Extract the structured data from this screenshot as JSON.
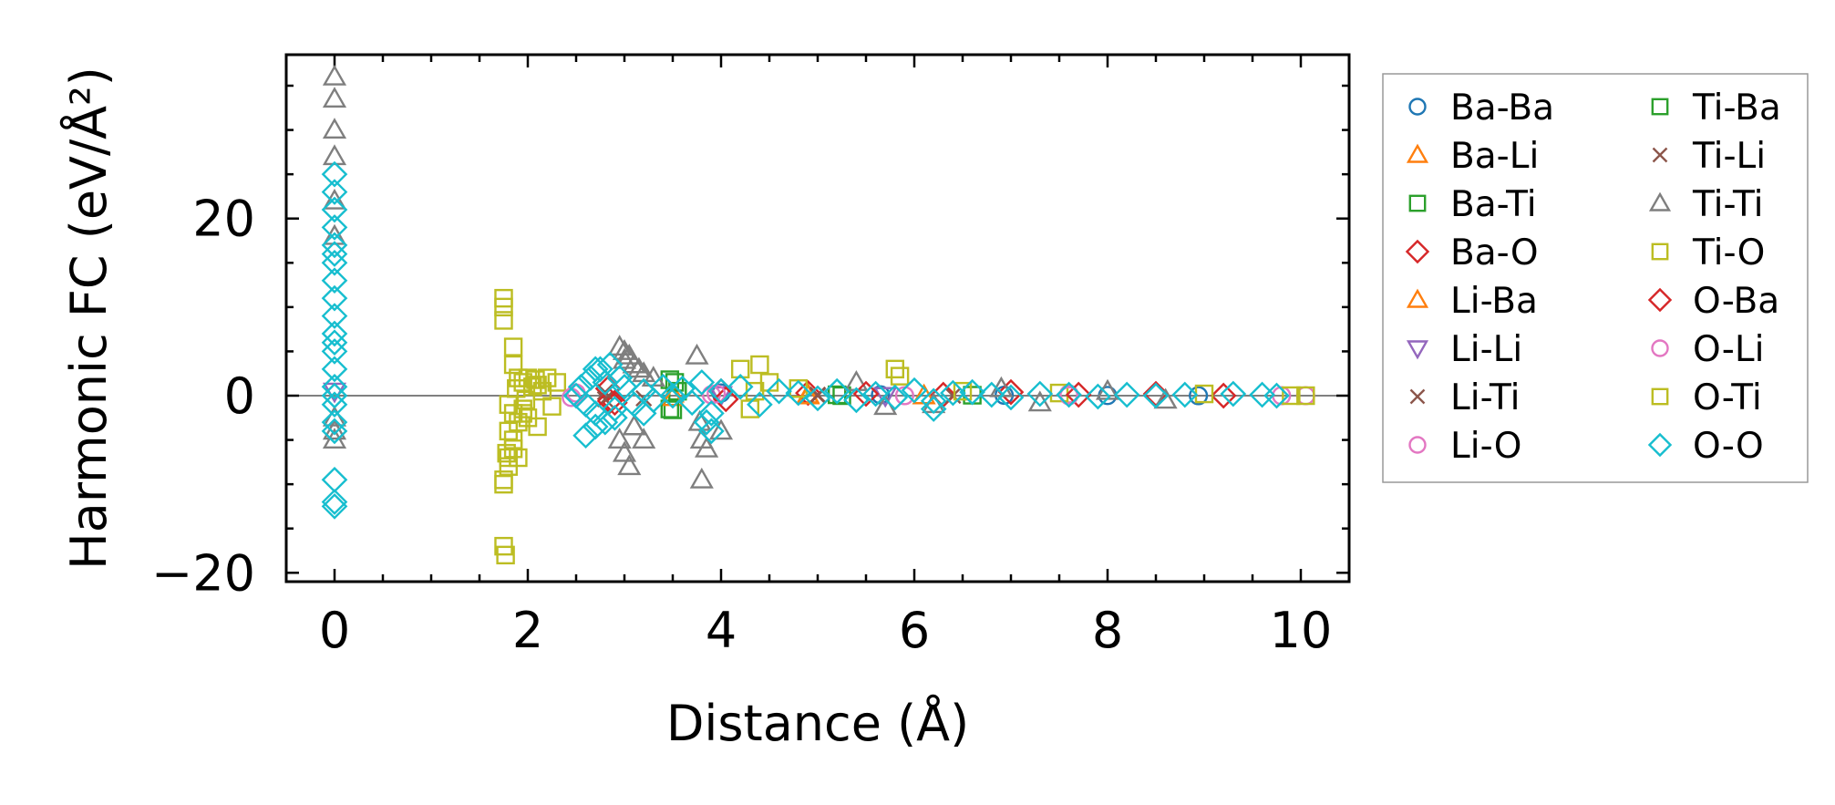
{
  "chart_data": {
    "type": "scatter",
    "title": "",
    "xlabel": "Distance (Å)",
    "ylabel": "Harmonic FC (eV/Å²)",
    "xlim": [
      -0.5,
      10.5
    ],
    "ylim": [
      -21,
      38.5
    ],
    "xticks": [
      0,
      2,
      4,
      6,
      8,
      10
    ],
    "yticks": [
      -20,
      0,
      20
    ],
    "xtick_labels": [
      "0",
      "2",
      "4",
      "6",
      "8",
      "10"
    ],
    "ytick_labels": [
      "−20",
      "0",
      "20"
    ],
    "zero_line": true,
    "legend_position": "outside-right",
    "series": [
      {
        "name": "Ba-Ba",
        "marker": "circle",
        "color": "#1f77b4",
        "x": [
          4.0,
          5.65,
          6.93,
          8.0,
          8.94
        ],
        "y": [
          0.3,
          0.1,
          0.05,
          0.02,
          0.0
        ]
      },
      {
        "name": "Ba-Li",
        "marker": "triangle-up",
        "color": "#ff7f0e",
        "x": [
          3.5,
          4.9,
          6.1
        ],
        "y": [
          0.2,
          0.1,
          0.0
        ]
      },
      {
        "name": "Ba-Ti",
        "marker": "square",
        "color": "#2ca02c",
        "x": [
          3.47,
          3.5,
          3.55,
          5.2,
          6.6
        ],
        "y": [
          1.8,
          -1.6,
          0.5,
          0.1,
          0.05
        ]
      },
      {
        "name": "Ba-O",
        "marker": "diamond",
        "color": "#d62728",
        "x": [
          2.83,
          2.9,
          4.0,
          4.9,
          6.3,
          7.0,
          8.5,
          9.2
        ],
        "y": [
          0.8,
          -0.8,
          0.5,
          0.3,
          0.1,
          0.4,
          0.2,
          0.0
        ]
      },
      {
        "name": "Li-Ba",
        "marker": "triangle-up",
        "color": "#ff7f0e",
        "x": [
          3.5,
          4.9
        ],
        "y": [
          -0.2,
          0.0
        ]
      },
      {
        "name": "Li-Li",
        "marker": "triangle-down",
        "color": "#9467bd",
        "x": [
          0,
          4.0,
          5.7
        ],
        "y": [
          0.5,
          0.1,
          0.0
        ]
      },
      {
        "name": "Li-Ti",
        "marker": "x",
        "color": "#8c564b",
        "x": [
          2.8,
          3.2,
          5.0,
          6.4
        ],
        "y": [
          0.4,
          -0.3,
          0.1,
          0.0
        ]
      },
      {
        "name": "Li-O",
        "marker": "circle",
        "color": "#e377c2",
        "x": [
          2.5,
          3.9,
          5.9,
          7.6,
          9.8,
          10.05
        ],
        "y": [
          0.3,
          0.1,
          0.0,
          0.2,
          0.0,
          0.0
        ]
      },
      {
        "name": "Ti-Ba",
        "marker": "square",
        "color": "#2ca02c",
        "x": [
          3.47,
          3.52,
          5.25
        ],
        "y": [
          -1.5,
          1.5,
          0.0
        ]
      },
      {
        "name": "Ti-Li",
        "marker": "x",
        "color": "#8c564b",
        "x": [
          2.8,
          5.0
        ],
        "y": [
          -0.4,
          0.0
        ]
      },
      {
        "name": "Ti-Ti",
        "marker": "triangle-up",
        "color": "#7f7f7f",
        "x": [
          0,
          0,
          0,
          0,
          0,
          0,
          0,
          0,
          0,
          2.95,
          3.0,
          3.0,
          3.05,
          3.1,
          3.15,
          3.2,
          3.3,
          2.95,
          3.0,
          3.05,
          3.1,
          3.2,
          3.75,
          3.8,
          3.85,
          4.0,
          3.8,
          3.78,
          5.4,
          5.7,
          6.2,
          6.9,
          7.3,
          8.0,
          8.6
        ],
        "y": [
          36,
          33.5,
          30,
          27,
          22,
          18,
          -2.5,
          -4,
          -5,
          5.5,
          5,
          4,
          4.5,
          3.5,
          3,
          2.5,
          2,
          -5,
          -6.5,
          -8,
          -3.5,
          -5,
          4.5,
          -5,
          -6,
          -4,
          -9.5,
          -3,
          1.5,
          -1.2,
          -1,
          0.8,
          -0.8,
          0.5,
          -0.5
        ]
      },
      {
        "name": "Ti-O",
        "marker": "square",
        "color": "#bcbd22",
        "x": [
          1.75,
          1.75,
          1.75,
          1.75,
          1.77,
          1.85,
          1.85,
          1.9,
          1.95,
          2.0,
          2.05,
          2.1,
          2.15,
          2.2,
          2.3,
          1.8,
          1.85,
          1.9,
          1.95,
          2.0,
          2.1,
          1.8,
          1.85,
          1.9,
          1.8,
          1.75,
          1.75,
          1.8,
          1.85,
          1.95,
          4.2,
          4.4,
          4.3,
          4.5,
          4.8,
          5.8,
          5.85,
          6.5,
          7.5,
          9.0,
          9.9,
          10.05
        ],
        "y": [
          11,
          10,
          8.5,
          -17,
          -18,
          5.5,
          3.5,
          2,
          1.5,
          2,
          1,
          1.2,
          0.5,
          2,
          1.5,
          -1,
          -2,
          -3,
          -1.5,
          -2.5,
          -3.5,
          -4,
          -6,
          -7,
          -8,
          -10,
          -9.5,
          -7,
          -5,
          -2,
          3,
          3.5,
          -1.5,
          1.5,
          0.8,
          3,
          2.2,
          0.5,
          0.3,
          0.2,
          0.0,
          0.0
        ]
      },
      {
        "name": "O-Ba",
        "marker": "diamond",
        "color": "#d62728",
        "x": [
          2.85,
          4.05,
          5.5,
          7.7
        ],
        "y": [
          -0.6,
          -0.4,
          0.2,
          0.1
        ]
      },
      {
        "name": "O-Li",
        "marker": "circle",
        "color": "#e377c2",
        "x": [
          2.45,
          3.95,
          7.6
        ],
        "y": [
          -0.2,
          0.2,
          0.0
        ]
      },
      {
        "name": "O-Ti",
        "marker": "square",
        "color": "#bcbd22",
        "x": [
          1.78,
          1.88,
          1.98,
          2.08,
          2.25,
          4.35
        ],
        "y": [
          -6.5,
          0.8,
          -0.5,
          1.8,
          -1.2,
          0.5
        ]
      },
      {
        "name": "O-O",
        "marker": "diamond",
        "color": "#17becf",
        "x": [
          0,
          0,
          0,
          0,
          0,
          0,
          0,
          0,
          0,
          0,
          0,
          0,
          0,
          0,
          0,
          0,
          0,
          0,
          0,
          0,
          0,
          0,
          2.5,
          2.55,
          2.6,
          2.65,
          2.7,
          2.75,
          2.8,
          2.85,
          2.9,
          2.95,
          2.6,
          2.7,
          2.8,
          2.9,
          3.0,
          3.1,
          3.2,
          3.3,
          3.4,
          3.5,
          3.6,
          3.7,
          3.8,
          3.9,
          4.0,
          4.2,
          4.4,
          4.6,
          4.8,
          5.0,
          5.2,
          5.4,
          5.6,
          5.8,
          6.0,
          6.2,
          6.4,
          6.6,
          6.8,
          7.0,
          7.3,
          7.6,
          7.9,
          8.2,
          8.5,
          8.8,
          9.3,
          9.6,
          9.75,
          3.85,
          3.9,
          2.7,
          3.2,
          6.2
        ],
        "y": [
          25,
          23,
          21,
          19,
          17,
          15,
          13,
          11,
          9,
          7,
          5,
          3,
          1,
          0,
          -1,
          -3,
          -4,
          -9.5,
          -12,
          -12.5,
          16,
          6,
          0,
          1,
          -1,
          2,
          -2,
          3,
          -3,
          3.5,
          -2.5,
          2,
          -4.5,
          -3.5,
          1.5,
          -1.5,
          1,
          -1,
          0.5,
          -0.5,
          1,
          0,
          0.8,
          -0.8,
          1.5,
          -2,
          0.5,
          1,
          -1,
          0.5,
          0.3,
          -0.3,
          0.5,
          -0.5,
          0.2,
          -0.2,
          0.6,
          -0.6,
          0.3,
          0.4,
          0.1,
          -0.2,
          0.2,
          0.1,
          -0.1,
          0.1,
          0.0,
          0.1,
          0.2,
          0.1,
          0.0,
          -3,
          -4,
          3,
          -2,
          -1.5
        ]
      }
    ]
  }
}
